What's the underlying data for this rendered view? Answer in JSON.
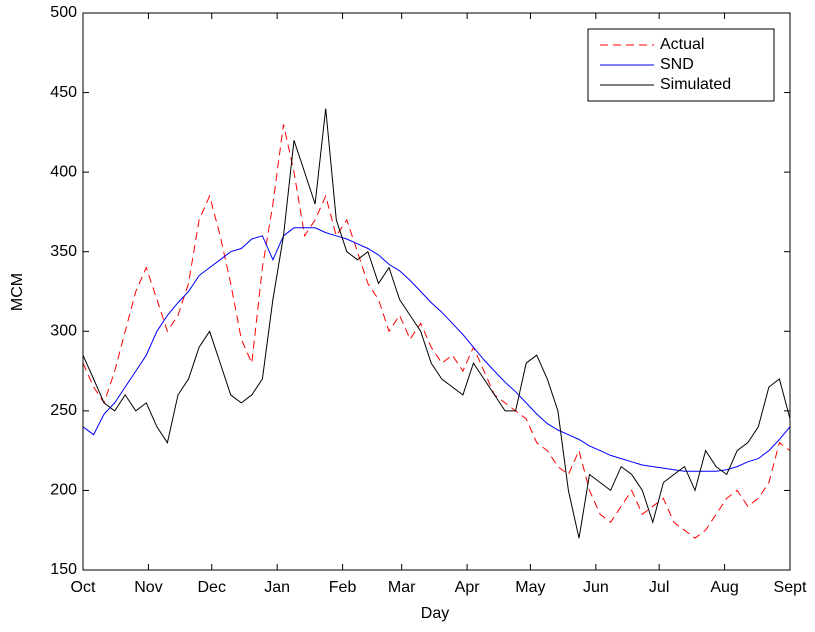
{
  "chart_data": {
    "type": "line",
    "x_label": "Day",
    "y_label": "MCM",
    "x": [
      0,
      5,
      10,
      15,
      20,
      25,
      30,
      35,
      40,
      45,
      50,
      55,
      60,
      65,
      70,
      75,
      80,
      85,
      90,
      95,
      100,
      105,
      110,
      115,
      120,
      125,
      130,
      135,
      140,
      145,
      150,
      155,
      160,
      165,
      170,
      175,
      180,
      185,
      190,
      195,
      200,
      205,
      210,
      215,
      220,
      225,
      230,
      235,
      240,
      245,
      250,
      255,
      260,
      265,
      270,
      275,
      280,
      285,
      290,
      295,
      300,
      305,
      310,
      315,
      320,
      325,
      330,
      335
    ],
    "series": [
      {
        "name": "Actual",
        "color": "#ff0000",
        "linestyle": "dashed",
        "values": [
          280,
          265,
          255,
          275,
          300,
          325,
          340,
          320,
          300,
          310,
          330,
          370,
          385,
          360,
          330,
          295,
          280,
          340,
          380,
          430,
          400,
          360,
          370,
          385,
          360,
          370,
          350,
          330,
          320,
          300,
          310,
          295,
          305,
          290,
          280,
          285,
          275,
          290,
          275,
          260,
          255,
          250,
          245,
          230,
          225,
          215,
          210,
          225,
          200,
          185,
          180,
          190,
          200,
          185,
          190,
          195,
          180,
          175,
          170,
          175,
          185,
          195,
          200,
          190,
          195,
          205,
          230,
          225
        ]
      },
      {
        "name": "SND",
        "color": "#0000ff",
        "linestyle": "solid",
        "values": [
          240,
          235,
          248,
          255,
          265,
          275,
          285,
          300,
          310,
          318,
          325,
          335,
          340,
          345,
          350,
          352,
          358,
          360,
          345,
          360,
          365,
          365,
          365,
          362,
          360,
          358,
          355,
          352,
          348,
          342,
          338,
          332,
          325,
          318,
          312,
          305,
          298,
          290,
          282,
          275,
          268,
          262,
          255,
          248,
          242,
          238,
          235,
          232,
          228,
          225,
          222,
          220,
          218,
          216,
          215,
          214,
          213,
          212,
          212,
          212,
          212,
          213,
          215,
          218,
          220,
          225,
          232,
          240
        ]
      },
      {
        "name": "Simulated",
        "color": "#000000",
        "linestyle": "solid",
        "values": [
          285,
          270,
          255,
          250,
          260,
          250,
          255,
          240,
          230,
          260,
          270,
          290,
          300,
          280,
          260,
          255,
          260,
          270,
          320,
          360,
          420,
          400,
          380,
          440,
          370,
          350,
          345,
          350,
          330,
          340,
          320,
          310,
          300,
          280,
          270,
          265,
          260,
          280,
          270,
          260,
          250,
          250,
          280,
          285,
          270,
          250,
          200,
          170,
          210,
          205,
          200,
          215,
          210,
          200,
          180,
          205,
          210,
          215,
          200,
          225,
          215,
          210,
          225,
          230,
          240,
          265,
          270,
          245
        ]
      }
    ],
    "xlim": [
      0,
      335
    ],
    "xticks": [
      {
        "value": 0,
        "label": "Oct"
      },
      {
        "value": 31,
        "label": "Nov"
      },
      {
        "value": 61,
        "label": "Dec"
      },
      {
        "value": 92,
        "label": "Jan"
      },
      {
        "value": 123,
        "label": "Feb"
      },
      {
        "value": 151,
        "label": "Mar"
      },
      {
        "value": 182,
        "label": "Apr"
      },
      {
        "value": 212,
        "label": "May"
      },
      {
        "value": 243,
        "label": "Jun"
      },
      {
        "value": 273,
        "label": "Jul"
      },
      {
        "value": 304,
        "label": "Aug"
      },
      {
        "value": 335,
        "label": "Sept"
      }
    ],
    "ylim": [
      150,
      500
    ],
    "yticks": [
      150,
      200,
      250,
      300,
      350,
      400,
      450,
      500
    ],
    "grid": false,
    "legend": "top-right"
  }
}
